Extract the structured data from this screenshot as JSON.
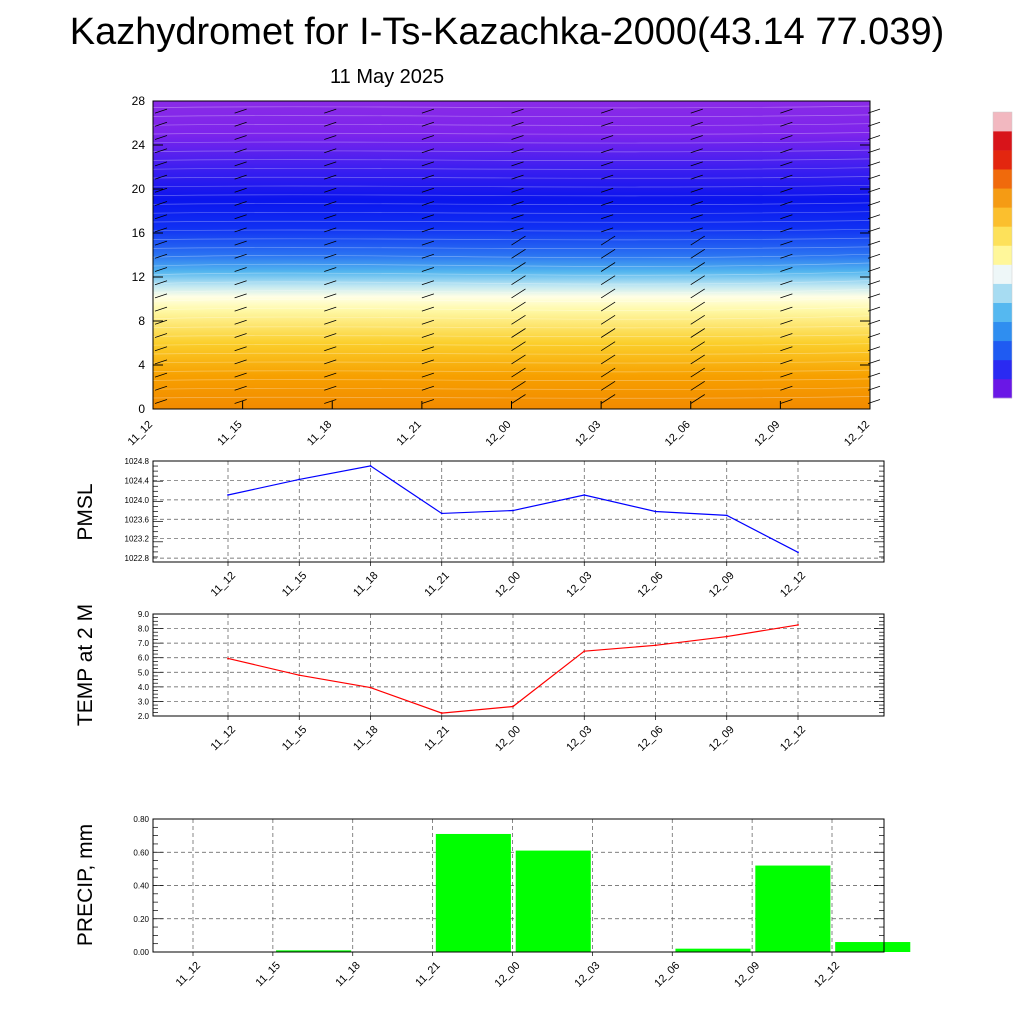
{
  "title": "Kazhydromet for I-Ts-Kazachka-2000(43.14 77.039)",
  "subtitle": "11 May 2025",
  "chart_data": [
    {
      "type": "heatmap",
      "name": "vertical cross-section",
      "x_ticks": [
        "11_12",
        "11_15",
        "11_18",
        "11_21",
        "12_00",
        "12_03",
        "12_06",
        "12_09",
        "12_12"
      ],
      "ylim": [
        0,
        28
      ],
      "y_ticks": [
        0,
        4,
        8,
        12,
        16,
        20,
        24,
        28
      ],
      "colorbar": {
        "tick_labels": []
      },
      "color_bands": [
        {
          "level": 0,
          "color": "#f28a00"
        },
        {
          "level": 3,
          "color": "#f7a000"
        },
        {
          "level": 6,
          "color": "#fbcf2c"
        },
        {
          "level": 9,
          "color": "#fff9a8"
        },
        {
          "level": 10.2,
          "color": "#ffffe6"
        },
        {
          "level": 11.2,
          "color": "#bfe7f2"
        },
        {
          "level": 12.5,
          "color": "#52b5ef"
        },
        {
          "level": 14,
          "color": "#2a73f2"
        },
        {
          "level": 16.5,
          "color": "#1030f3"
        },
        {
          "level": 19,
          "color": "#0a14ee"
        },
        {
          "level": 22,
          "color": "#3f1ff0"
        },
        {
          "level": 25,
          "color": "#7d24ec"
        },
        {
          "level": 28,
          "color": "#8a2be7"
        }
      ]
    },
    {
      "type": "line",
      "name": "pmsl",
      "ylabel": "PMSL",
      "categories": [
        "11_12",
        "11_15",
        "11_18",
        "11_21",
        "12_00",
        "12_03",
        "12_06",
        "12_09",
        "12_12"
      ],
      "values": [
        1024.1,
        1024.42,
        1024.7,
        1023.72,
        1023.78,
        1024.1,
        1023.76,
        1023.68,
        1022.92
      ],
      "ylim": [
        1022.72,
        1024.8
      ],
      "y_ticks": [
        "1022.8",
        "1023.2",
        "1023.6",
        "1024.0",
        "1024.4",
        "1024.8"
      ],
      "color": "#0000ff",
      "grid": true
    },
    {
      "type": "line",
      "name": "temp",
      "ylabel": "TEMP at 2 M",
      "categories": [
        "11_12",
        "11_15",
        "11_18",
        "11_21",
        "12_00",
        "12_03",
        "12_06",
        "12_09",
        "12_12"
      ],
      "values": [
        5.95,
        4.8,
        3.95,
        2.2,
        2.65,
        6.45,
        6.85,
        7.45,
        8.25
      ],
      "ylim": [
        2.0,
        9.0
      ],
      "y_ticks": [
        "2.0",
        "3.0",
        "4.0",
        "5.0",
        "6.0",
        "7.0",
        "8.0",
        "9.0"
      ],
      "color": "#ff0000",
      "grid": true
    },
    {
      "type": "bar",
      "name": "precip",
      "ylabel": "PRECIP, mm",
      "categories": [
        "11_12",
        "11_15",
        "11_18",
        "11_21",
        "12_00",
        "12_03",
        "12_06",
        "12_09",
        "12_12"
      ],
      "values": [
        0.0,
        0.01,
        0.0,
        0.71,
        0.61,
        0.0,
        0.02,
        0.52,
        0.06
      ],
      "ylim": [
        0,
        0.8
      ],
      "y_ticks": [
        "0.00",
        "0.20",
        "0.40",
        "0.60",
        "0.80"
      ],
      "color": "#00ff00",
      "grid": true
    }
  ]
}
